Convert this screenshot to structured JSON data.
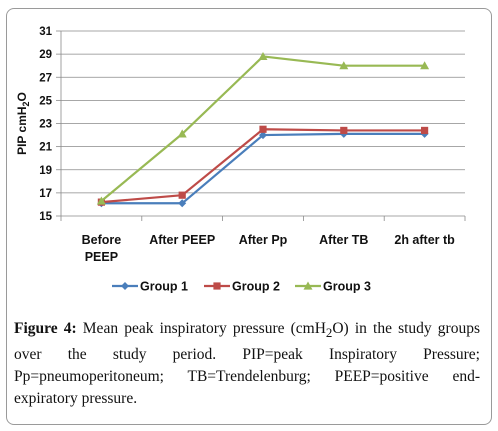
{
  "chart_data": {
    "type": "line",
    "categories": [
      "Before PEEP",
      "After PEEP",
      "After Pp",
      "After TB",
      "2h after tb"
    ],
    "category_lines": [
      [
        "Before",
        "PEEP"
      ],
      [
        "After PEEP"
      ],
      [
        "After Pp"
      ],
      [
        "After TB"
      ],
      [
        "2h after tb"
      ]
    ],
    "series": [
      {
        "name": "Group 1",
        "values": [
          16.1,
          16.1,
          22.0,
          22.1,
          22.1
        ],
        "color": "#4a7ebb",
        "marker": "diamond"
      },
      {
        "name": "Group 2",
        "values": [
          16.2,
          16.8,
          22.5,
          22.4,
          22.4
        ],
        "color": "#be4b48",
        "marker": "square"
      },
      {
        "name": "Group 3",
        "values": [
          16.3,
          22.1,
          28.8,
          28.0,
          28.0
        ],
        "color": "#98b954",
        "marker": "triangle"
      }
    ],
    "ylim": [
      15,
      31
    ],
    "yticks": [
      15,
      17,
      19,
      21,
      23,
      25,
      27,
      29,
      31
    ],
    "ylabel": {
      "main": "PIP  cmH",
      "sub": "2",
      "tail": "O"
    },
    "xlabel": "",
    "grid": "horizontal",
    "legend": "bottom"
  },
  "caption": {
    "label": "Figure 4:",
    "text_before_sub": " Mean peak inspiratory pressure (cmH",
    "sub": "2",
    "text_after_sub": "O) in the study groups over the study period. PIP=peak Inspiratory Pressure; Pp=pneumoperitoneum; TB=Trendelenburg; PEEP=positive end-expiratory pressure."
  }
}
